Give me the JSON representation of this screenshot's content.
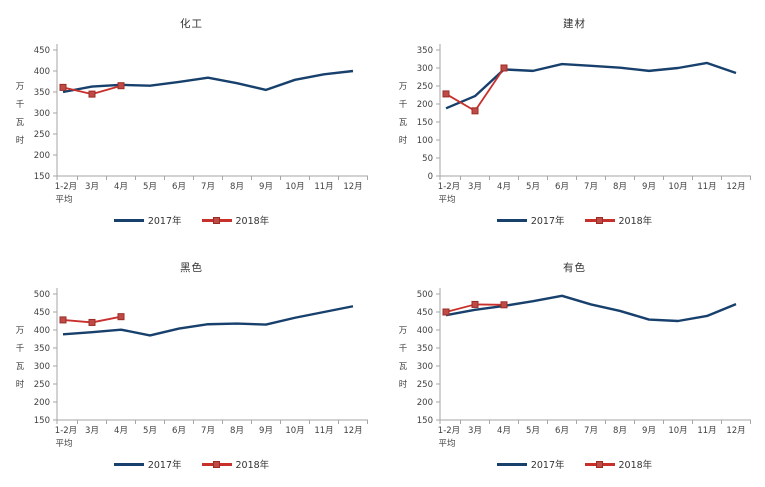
{
  "page": {
    "background": "#ffffff"
  },
  "colors": {
    "series_2017_line": "#17406D",
    "series_2018_line": "#C8302C",
    "series_2018_marker_fill": "#BE4B46",
    "series_2018_marker_border": "#9C2B25",
    "axis_line": "#A6A6A6",
    "tick_text": "#404040",
    "title_text": "#333333"
  },
  "x_categories": [
    "1-2月|平均",
    "3月",
    "4月",
    "5月",
    "6月",
    "7月",
    "8月",
    "9月",
    "10月",
    "11月",
    "12月"
  ],
  "chart_data": [
    {
      "type": "line",
      "title": "化工",
      "ylabel": "万千瓦时",
      "ylim": [
        150,
        450
      ],
      "ytick_step": 50,
      "grid": false,
      "legend_position": "bottom",
      "categories": [
        "1-2月平均",
        "3月",
        "4月",
        "5月",
        "6月",
        "7月",
        "8月",
        "9月",
        "10月",
        "11月",
        "12月"
      ],
      "series": [
        {
          "name": "2017年",
          "values": [
            350,
            363,
            367,
            365,
            374,
            384,
            371,
            355,
            379,
            392,
            400
          ]
        },
        {
          "name": "2018年",
          "values": [
            361,
            345,
            365,
            null,
            null,
            null,
            null,
            null,
            null,
            null,
            null
          ]
        }
      ]
    },
    {
      "type": "line",
      "title": "建材",
      "ylabel": "万千瓦时",
      "ylim": [
        0,
        350
      ],
      "ytick_step": 50,
      "grid": false,
      "legend_position": "bottom",
      "categories": [
        "1-2月平均",
        "3月",
        "4月",
        "5月",
        "6月",
        "7月",
        "8月",
        "9月",
        "10月",
        "11月",
        "12月"
      ],
      "series": [
        {
          "name": "2017年",
          "values": [
            188,
            222,
            296,
            292,
            311,
            306,
            301,
            292,
            300,
            314,
            286
          ]
        },
        {
          "name": "2018年",
          "values": [
            228,
            181,
            300,
            null,
            null,
            null,
            null,
            null,
            null,
            null,
            null
          ]
        }
      ]
    },
    {
      "type": "line",
      "title": "黑色",
      "ylabel": "万千瓦时",
      "ylim": [
        150,
        500
      ],
      "ytick_step": 50,
      "grid": false,
      "legend_position": "bottom",
      "categories": [
        "1-2月平均",
        "3月",
        "4月",
        "5月",
        "6月",
        "7月",
        "8月",
        "9月",
        "10月",
        "11月",
        "12月"
      ],
      "series": [
        {
          "name": "2017年",
          "values": [
            388,
            394,
            401,
            385,
            404,
            416,
            418,
            415,
            434,
            450,
            466
          ]
        },
        {
          "name": "2018年",
          "values": [
            428,
            421,
            437,
            null,
            null,
            null,
            null,
            null,
            null,
            null,
            null
          ]
        }
      ]
    },
    {
      "type": "line",
      "title": "有色",
      "ylabel": "万千瓦时",
      "ylim": [
        150,
        500
      ],
      "ytick_step": 50,
      "grid": false,
      "legend_position": "bottom",
      "categories": [
        "1-2月平均",
        "3月",
        "4月",
        "5月",
        "6月",
        "7月",
        "8月",
        "9月",
        "10月",
        "11月",
        "12月"
      ],
      "series": [
        {
          "name": "2017年",
          "values": [
            441,
            456,
            467,
            480,
            495,
            471,
            453,
            429,
            425,
            439,
            472
          ]
        },
        {
          "name": "2018年",
          "values": [
            450,
            471,
            470,
            null,
            null,
            null,
            null,
            null,
            null,
            null,
            null
          ]
        }
      ]
    }
  ]
}
